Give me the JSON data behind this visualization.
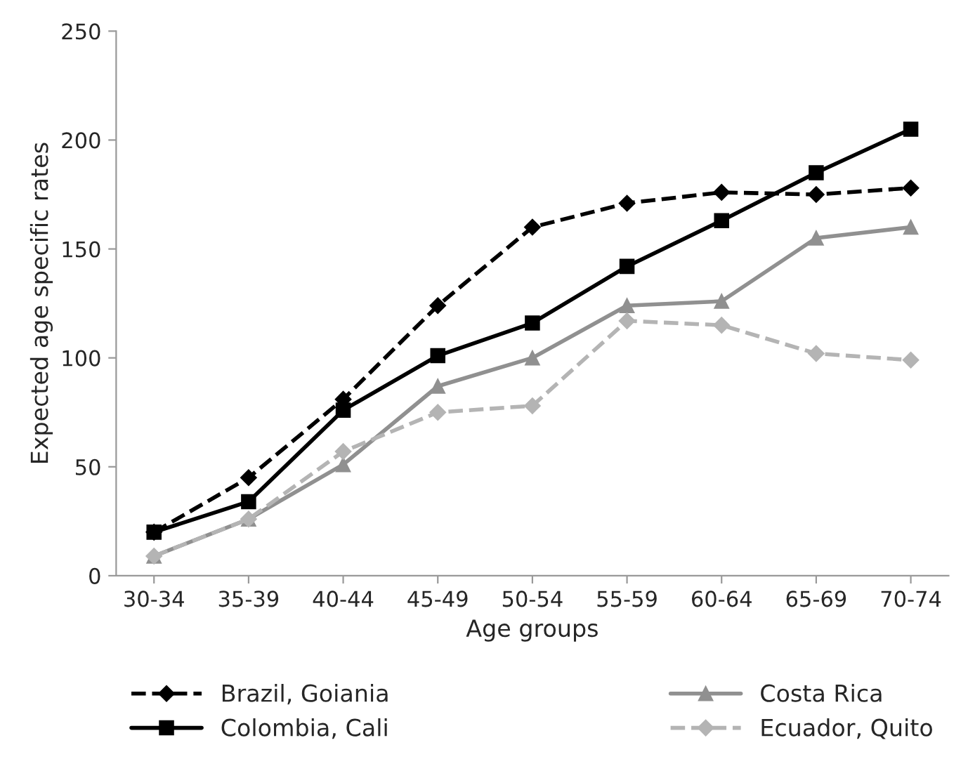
{
  "chart_data": {
    "type": "line",
    "xlabel": "Age groups",
    "ylabel": "Expected age specific rates",
    "categories": [
      "30-34",
      "35-39",
      "40-44",
      "45-49",
      "50-54",
      "55-59",
      "60-64",
      "65-69",
      "70-74"
    ],
    "ylim": [
      0,
      250
    ],
    "yticks": [
      0,
      50,
      100,
      150,
      200,
      250
    ],
    "grid": false,
    "legend": "bottom",
    "series": [
      {
        "name": "Brazil, Goiania",
        "color": "#000000",
        "marker": "diamond",
        "line_style": "dashed",
        "values": [
          20,
          45,
          81,
          124,
          160,
          171,
          176,
          175,
          178
        ]
      },
      {
        "name": "Colombia, Cali",
        "color": "#000000",
        "marker": "square",
        "line_style": "solid",
        "values": [
          20,
          34,
          76,
          101,
          116,
          142,
          163,
          185,
          205
        ]
      },
      {
        "name": "Costa Rica",
        "color": "#909090",
        "marker": "triangle",
        "line_style": "solid",
        "values": [
          9,
          26,
          51,
          87,
          100,
          124,
          126,
          155,
          160
        ]
      },
      {
        "name": "Ecuador, Quito",
        "color": "#b4b4b4",
        "marker": "diamond",
        "line_style": "dashed",
        "values": [
          9,
          26,
          57,
          75,
          78,
          117,
          115,
          102,
          99
        ]
      }
    ]
  }
}
